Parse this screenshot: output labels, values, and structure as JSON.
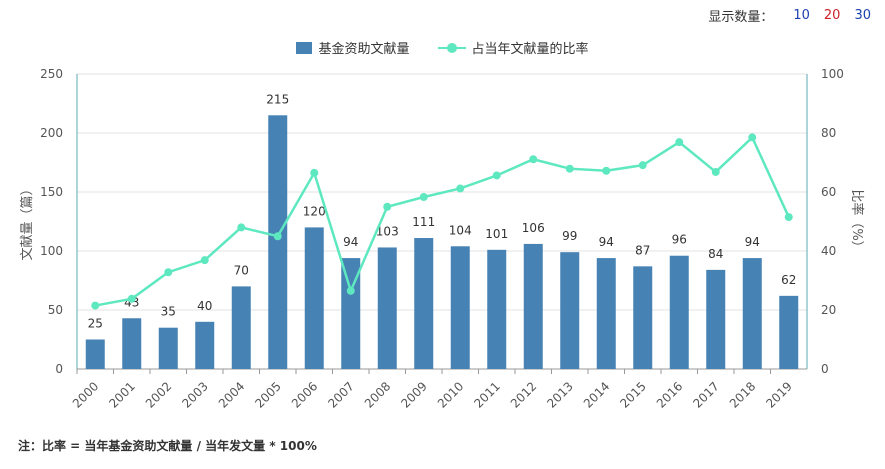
{
  "display_count": {
    "label": "显示数量：",
    "options": [
      {
        "label": "10",
        "color": "#1a3fb0"
      },
      {
        "label": "20",
        "color": "#d0202a"
      },
      {
        "label": "30",
        "color": "#1a3fb0"
      }
    ]
  },
  "footnote": "注：比率 = 当年基金资助文献量 / 当年发文量 * 100%",
  "chart_data": {
    "type": "bar",
    "categories": [
      "2000",
      "2001",
      "2002",
      "2003",
      "2004",
      "2005",
      "2006",
      "2007",
      "2008",
      "2009",
      "2010",
      "2011",
      "2012",
      "2013",
      "2014",
      "2015",
      "2016",
      "2017",
      "2018",
      "2019"
    ],
    "series": [
      {
        "name": "基金资助文献量",
        "type": "bar",
        "axis": "left",
        "color": "#4682b4",
        "values": [
          25,
          43,
          35,
          40,
          70,
          215,
          120,
          94,
          103,
          111,
          104,
          101,
          106,
          99,
          94,
          87,
          96,
          84,
          94,
          62
        ]
      },
      {
        "name": "占当年文献量的比率",
        "type": "line",
        "axis": "right",
        "color": "#5ee8c0",
        "values": [
          21.5,
          23.8,
          32.8,
          36.9,
          48.0,
          45.0,
          66.5,
          26.5,
          55.0,
          58.3,
          61.2,
          65.6,
          71.1,
          67.9,
          67.2,
          69.1,
          76.9,
          66.8,
          78.5,
          51.5
        ]
      }
    ],
    "ylabel": "文献量（篇）",
    "y2label": "比率（%）",
    "ylim": [
      0,
      250
    ],
    "yticks": [
      0,
      50,
      100,
      150,
      200,
      250
    ],
    "y2lim": [
      0,
      100
    ],
    "y2ticks": [
      0,
      20,
      40,
      60,
      80,
      100
    ],
    "grid": true,
    "legend_position": "top-center",
    "data_labels": true
  }
}
